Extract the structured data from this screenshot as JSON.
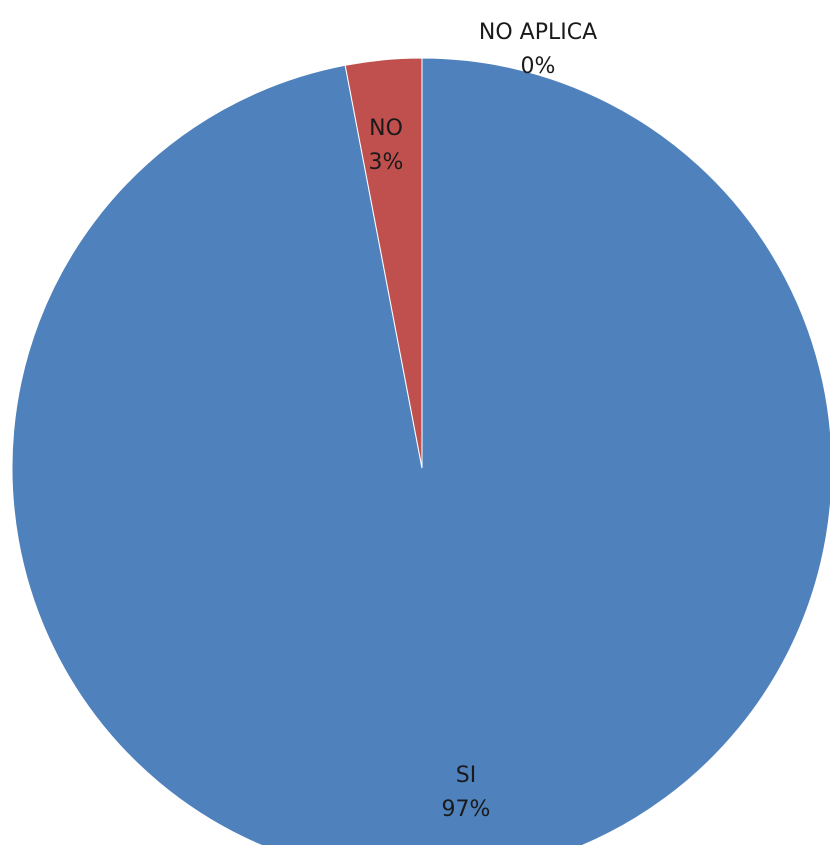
{
  "chart_data": {
    "type": "pie",
    "title": "",
    "categories": [
      "SI",
      "NO",
      "NO APLICA"
    ],
    "values": [
      97,
      3,
      0
    ],
    "value_labels": [
      "97%",
      "3%",
      "0%"
    ],
    "colors": [
      "#4f81bd",
      "#c0504d",
      "#9bbb59"
    ],
    "start_angle_deg": 0,
    "direction": "clockwise",
    "legend": "none"
  }
}
